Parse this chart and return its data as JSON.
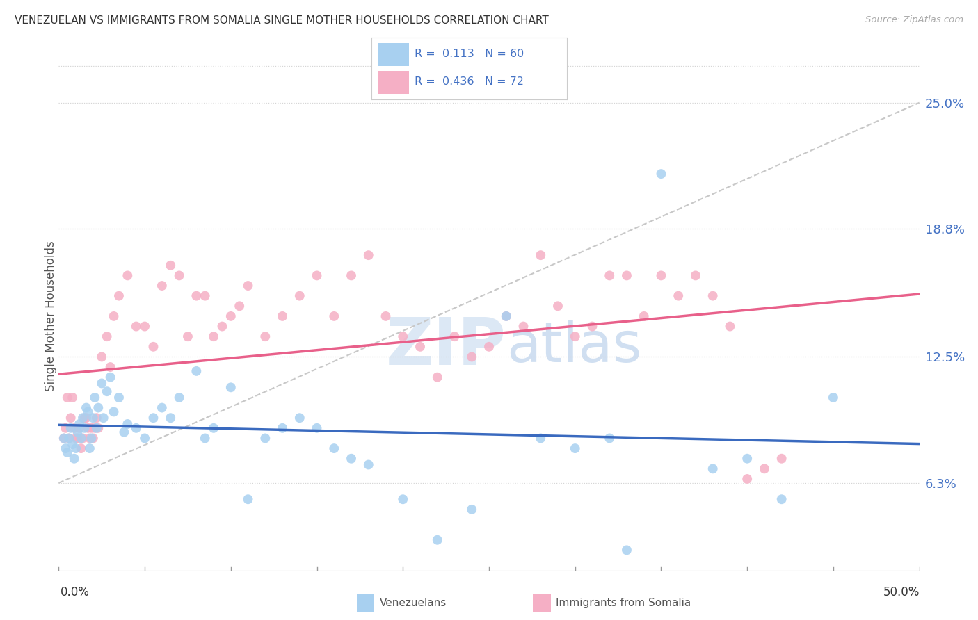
{
  "title": "VENEZUELAN VS IMMIGRANTS FROM SOMALIA SINGLE MOTHER HOUSEHOLDS CORRELATION CHART",
  "source": "Source: ZipAtlas.com",
  "ylabel": "Single Mother Households",
  "ytick_values": [
    6.3,
    12.5,
    18.8,
    25.0
  ],
  "xlim": [
    0.0,
    50.0
  ],
  "ylim": [
    2.0,
    27.0
  ],
  "venezuelan_R": 0.113,
  "venezuelan_N": 60,
  "somalia_R": 0.436,
  "somalia_N": 72,
  "venezuelan_color": "#a8d0f0",
  "somalia_color": "#f5afc5",
  "trendline_venezuela_color": "#3a6abf",
  "trendline_somalia_color": "#e8608a",
  "dashed_line_color": "#c8c8c8",
  "background_color": "#ffffff",
  "watermark_zip": "ZIP",
  "watermark_atlas": "atlas",
  "venezuelan_x": [
    0.3,
    0.4,
    0.5,
    0.6,
    0.7,
    0.8,
    0.9,
    1.0,
    1.1,
    1.2,
    1.3,
    1.4,
    1.5,
    1.6,
    1.7,
    1.8,
    1.9,
    2.0,
    2.1,
    2.2,
    2.3,
    2.5,
    2.6,
    2.8,
    3.0,
    3.2,
    3.5,
    3.8,
    4.0,
    4.5,
    5.0,
    5.5,
    6.0,
    6.5,
    7.0,
    8.0,
    8.5,
    9.0,
    10.0,
    11.0,
    12.0,
    13.0,
    14.0,
    15.0,
    16.0,
    17.0,
    18.0,
    20.0,
    22.0,
    24.0,
    26.0,
    28.0,
    30.0,
    32.0,
    33.0,
    35.0,
    38.0,
    40.0,
    42.0,
    45.0
  ],
  "venezuelan_y": [
    8.5,
    8.0,
    7.8,
    8.5,
    9.0,
    8.2,
    7.5,
    8.0,
    8.8,
    9.2,
    8.5,
    9.5,
    9.0,
    10.0,
    9.8,
    8.0,
    8.5,
    9.5,
    10.5,
    9.0,
    10.0,
    11.2,
    9.5,
    10.8,
    11.5,
    9.8,
    10.5,
    8.8,
    9.2,
    9.0,
    8.5,
    9.5,
    10.0,
    9.5,
    10.5,
    11.8,
    8.5,
    9.0,
    11.0,
    5.5,
    8.5,
    9.0,
    9.5,
    9.0,
    8.0,
    7.5,
    7.2,
    5.5,
    3.5,
    5.0,
    14.5,
    8.5,
    8.0,
    8.5,
    3.0,
    21.5,
    7.0,
    7.5,
    5.5,
    10.5
  ],
  "somalia_x": [
    0.3,
    0.4,
    0.5,
    0.6,
    0.7,
    0.8,
    0.9,
    1.0,
    1.1,
    1.2,
    1.3,
    1.4,
    1.5,
    1.6,
    1.7,
    1.8,
    1.9,
    2.0,
    2.1,
    2.2,
    2.3,
    2.5,
    2.8,
    3.0,
    3.2,
    3.5,
    4.0,
    4.5,
    5.0,
    5.5,
    6.0,
    6.5,
    7.0,
    7.5,
    8.0,
    8.5,
    9.0,
    9.5,
    10.0,
    10.5,
    11.0,
    12.0,
    13.0,
    14.0,
    15.0,
    16.0,
    17.0,
    18.0,
    19.0,
    20.0,
    21.0,
    22.0,
    23.0,
    24.0,
    25.0,
    26.0,
    27.0,
    28.0,
    29.0,
    30.0,
    31.0,
    32.0,
    33.0,
    34.0,
    35.0,
    36.0,
    37.0,
    38.0,
    39.0,
    40.0,
    41.0,
    42.0
  ],
  "somalia_y": [
    8.5,
    9.0,
    10.5,
    8.5,
    9.5,
    10.5,
    9.0,
    8.5,
    8.5,
    9.0,
    8.0,
    8.5,
    9.5,
    9.5,
    9.0,
    8.5,
    9.0,
    8.5,
    9.0,
    9.5,
    9.0,
    12.5,
    13.5,
    12.0,
    14.5,
    15.5,
    16.5,
    14.0,
    14.0,
    13.0,
    16.0,
    17.0,
    16.5,
    13.5,
    15.5,
    15.5,
    13.5,
    14.0,
    14.5,
    15.0,
    16.0,
    13.5,
    14.5,
    15.5,
    16.5,
    14.5,
    16.5,
    17.5,
    14.5,
    13.5,
    13.0,
    11.5,
    13.5,
    12.5,
    13.0,
    14.5,
    14.0,
    17.5,
    15.0,
    13.5,
    14.0,
    16.5,
    16.5,
    14.5,
    16.5,
    15.5,
    16.5,
    15.5,
    14.0,
    6.5,
    7.0,
    7.5
  ]
}
